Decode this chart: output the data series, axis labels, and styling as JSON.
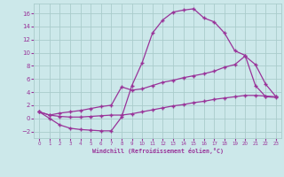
{
  "xlabel": "Windchill (Refroidissement éolien,°C)",
  "bg_color": "#cce8ea",
  "grid_color": "#aacccc",
  "line_color": "#993399",
  "xlim": [
    -0.5,
    23.5
  ],
  "ylim": [
    -3.0,
    17.5
  ],
  "xticks": [
    0,
    1,
    2,
    3,
    4,
    5,
    6,
    7,
    8,
    9,
    10,
    11,
    12,
    13,
    14,
    15,
    16,
    17,
    18,
    19,
    20,
    21,
    22,
    23
  ],
  "yticks": [
    -2,
    0,
    2,
    4,
    6,
    8,
    10,
    12,
    14,
    16
  ],
  "series1_x": [
    0,
    1,
    2,
    3,
    4,
    5,
    6,
    7,
    8,
    9,
    10,
    11,
    12,
    13,
    14,
    15,
    16,
    17,
    18,
    19,
    20,
    21,
    22,
    23
  ],
  "series1_y": [
    1.0,
    0.0,
    -1.0,
    -1.5,
    -1.7,
    -1.8,
    -1.9,
    -1.9,
    0.2,
    5.0,
    8.5,
    13.0,
    15.0,
    16.2,
    16.5,
    16.7,
    15.3,
    14.7,
    13.0,
    10.3,
    9.6,
    5.0,
    3.3,
    3.2
  ],
  "series2_x": [
    0,
    1,
    2,
    3,
    4,
    5,
    6,
    7,
    8,
    9,
    10,
    11,
    12,
    13,
    14,
    15,
    16,
    17,
    18,
    19,
    20,
    21,
    22,
    23
  ],
  "series2_y": [
    1.0,
    0.5,
    0.8,
    1.0,
    1.2,
    1.5,
    1.8,
    2.0,
    4.8,
    4.3,
    4.5,
    5.0,
    5.5,
    5.8,
    6.2,
    6.5,
    6.8,
    7.2,
    7.8,
    8.2,
    9.5,
    8.2,
    5.2,
    3.3
  ],
  "series3_x": [
    0,
    1,
    2,
    3,
    4,
    5,
    6,
    7,
    8,
    9,
    10,
    11,
    12,
    13,
    14,
    15,
    16,
    17,
    18,
    19,
    20,
    21,
    22,
    23
  ],
  "series3_y": [
    1.0,
    0.5,
    0.3,
    0.2,
    0.2,
    0.3,
    0.4,
    0.5,
    0.5,
    0.7,
    1.0,
    1.3,
    1.6,
    1.9,
    2.1,
    2.4,
    2.6,
    2.9,
    3.1,
    3.3,
    3.5,
    3.5,
    3.4,
    3.3
  ]
}
